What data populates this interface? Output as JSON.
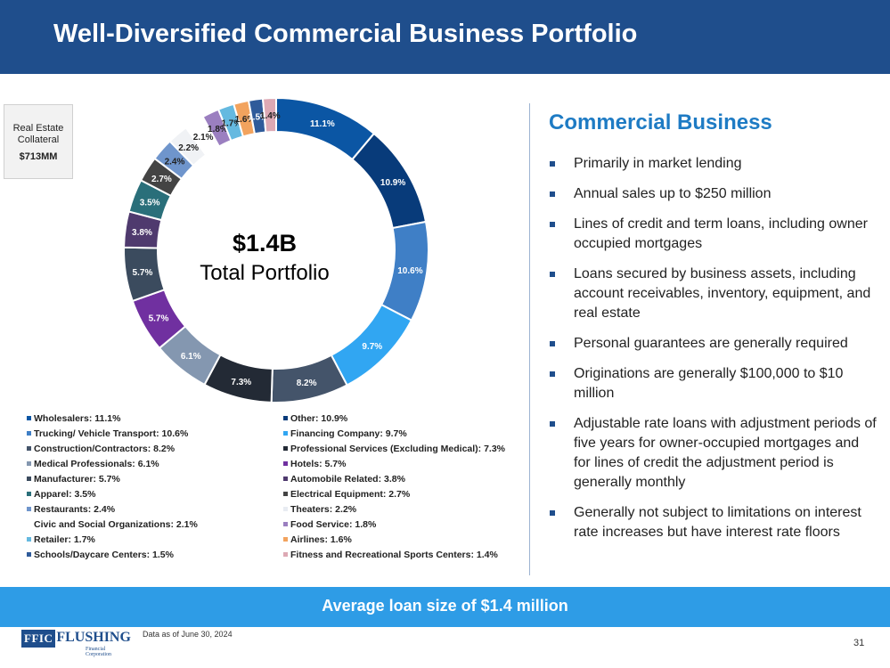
{
  "header": {
    "title": "Well-Diversified Commercial Business Portfolio"
  },
  "collateral": {
    "label": "Real Estate Collateral",
    "value": "$713MM"
  },
  "center": {
    "value": "$1.4B",
    "label": "Total Portfolio"
  },
  "colors": {
    "header": "#1F4E8C",
    "banner": "#2E9CE6",
    "accent_title": "#1E7BC4"
  },
  "chart_data": {
    "type": "pie",
    "donut": true,
    "slices": [
      {
        "name": "Wholesalers",
        "value": 11.1,
        "label": "11.1%",
        "color": "#0B56A4"
      },
      {
        "name": "Other",
        "value": 10.9,
        "label": "10.9%",
        "color": "#083B7A"
      },
      {
        "name": "Trucking/ Vehicle Transport",
        "value": 10.6,
        "label": "10.6%",
        "color": "#3F7FC6"
      },
      {
        "name": "Financing Company",
        "value": 9.7,
        "label": "9.7%",
        "color": "#31A6F2"
      },
      {
        "name": "Construction/Contractors",
        "value": 8.2,
        "label": "8.2%",
        "color": "#44546A"
      },
      {
        "name": "Professional Services (Excluding Medical)",
        "value": 7.3,
        "label": "7.3%",
        "color": "#232A35"
      },
      {
        "name": "Medical Professionals",
        "value": 6.1,
        "label": "6.1%",
        "color": "#8497B0"
      },
      {
        "name": "Hotels",
        "value": 5.7,
        "label": "5.7%",
        "color": "#7030A0"
      },
      {
        "name": "Manufacturer",
        "value": 5.7,
        "label": "5.7%",
        "color": "#3B4B5E"
      },
      {
        "name": "Automobile Related",
        "value": 3.8,
        "label": "3.8%",
        "color": "#4F3A6E"
      },
      {
        "name": "Apparel",
        "value": 3.5,
        "label": "3.5%",
        "color": "#2A6F7A"
      },
      {
        "name": "Electrical Equipment",
        "value": 2.7,
        "label": "2.7%",
        "color": "#444444"
      },
      {
        "name": "Restaurants",
        "value": 2.4,
        "label": "2.4%",
        "color": "#6F95CC"
      },
      {
        "name": "Theaters",
        "value": 2.2,
        "label": "2.2%",
        "color": "#F0F2F5"
      },
      {
        "name": "Civic and Social Organizations",
        "value": 2.1,
        "label": "2.1%",
        "color": "#FFFFFF"
      },
      {
        "name": "Food Service",
        "value": 1.8,
        "label": "1.8%",
        "color": "#9B7FC0"
      },
      {
        "name": "Retailer",
        "value": 1.7,
        "label": "1.7%",
        "color": "#65B9E0"
      },
      {
        "name": "Airlines",
        "value": 1.6,
        "label": "1.6%",
        "color": "#F2A35E"
      },
      {
        "name": "Schools/Daycare Centers",
        "value": 1.5,
        "label": "1.5%",
        "color": "#2F5B9A"
      },
      {
        "name": "Fitness and Recreational Sports Centers",
        "value": 1.4,
        "label": "1.4%",
        "color": "#DDA9B4"
      }
    ],
    "legend": [
      "Wholesalers: 11.1%",
      "Other: 10.9%",
      "Trucking/ Vehicle Transport: 10.6%",
      "Financing Company: 9.7%",
      "Construction/Contractors: 8.2%",
      "Professional Services (Excluding Medical): 7.3%",
      "Medical Professionals: 6.1%",
      "Hotels: 5.7%",
      "Manufacturer: 5.7%",
      "Automobile Related: 3.8%",
      "Apparel: 3.5%",
      "Electrical Equipment: 2.7%",
      "Restaurants: 2.4%",
      "Theaters: 2.2%",
      "Civic and Social Organizations: 2.1%",
      "Food Service: 1.8%",
      "Retailer: 1.7%",
      "Airlines: 1.6%",
      "Schools/Daycare Centers: 1.5%",
      "Fitness and Recreational Sports Centers: 1.4%"
    ],
    "legend_swatch_colors": [
      "#0B56A4",
      "#083B7A",
      "#3F7FC6",
      "#31A6F2",
      "#44546A",
      "#232A35",
      "#8497B0",
      "#7030A0",
      "#3B4B5E",
      "#4F3A6E",
      "#2A6F7A",
      "#444444",
      "#6F95CC",
      "#E8ECF2",
      "#FFFFFF",
      "#9B7FC0",
      "#65B9E0",
      "#F2A35E",
      "#2F5B9A",
      "#DDA9B4"
    ],
    "legend_placement": "bottom"
  },
  "panel": {
    "title": "Commercial Business",
    "bullets": [
      "Primarily in market lending",
      "Annual sales up to $250 million",
      "Lines of credit and term loans, including owner occupied mortgages",
      "Loans secured by business assets, including account receivables, inventory, equipment, and real estate",
      "Personal guarantees are generally required",
      "Originations are generally $100,000 to $10 million",
      "Adjustable rate loans with adjustment periods of five years for owner-occupied mortgages and for lines of credit the adjustment period is generally monthly",
      "Generally not subject to limitations on interest rate increases but have interest rate floors"
    ]
  },
  "banner": {
    "text": "Average loan size of $1.4 million"
  },
  "footer": {
    "logo_box": "FFIC",
    "logo_word": "FLUSHING",
    "logo_sub": "Financial Corporation",
    "as_of": "Data as of June 30, 2024",
    "page": "31"
  }
}
